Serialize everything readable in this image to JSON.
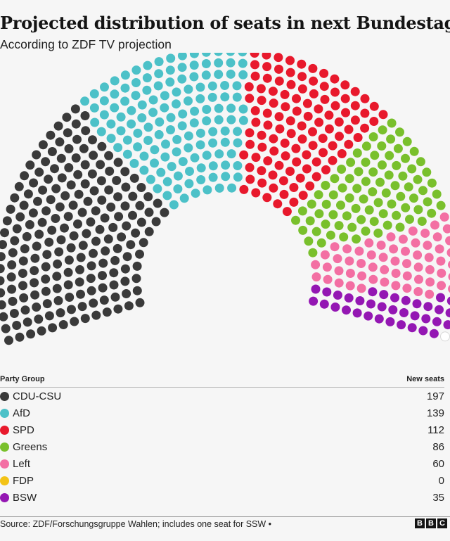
{
  "chart_data": {
    "type": "parliament",
    "title": "Projected distribution of seats in next Bundestag",
    "subtitle": "According to ZDF TV projection",
    "columns": {
      "party": "Party Group",
      "seats": "New seats"
    },
    "series": [
      {
        "name": "CDU-CSU",
        "value": 197,
        "color": "#3a3a3a"
      },
      {
        "name": "AfD",
        "value": 139,
        "color": "#4cc1c8"
      },
      {
        "name": "SPD",
        "value": 112,
        "color": "#e8192c"
      },
      {
        "name": "Greens",
        "value": 86,
        "color": "#79c02c"
      },
      {
        "name": "Left",
        "value": 60,
        "color": "#f36fa3"
      },
      {
        "name": "FDP",
        "value": 0,
        "color": "#f3c316"
      },
      {
        "name": "BSW",
        "value": 35,
        "color": "#9417b3"
      }
    ],
    "other_seat": {
      "value": 1,
      "color": "#ffffff"
    },
    "source": "Source: ZDF/Forschungsgruppe Wahlen; includes one seat for SSW •"
  },
  "brand": [
    "B",
    "B",
    "C"
  ]
}
